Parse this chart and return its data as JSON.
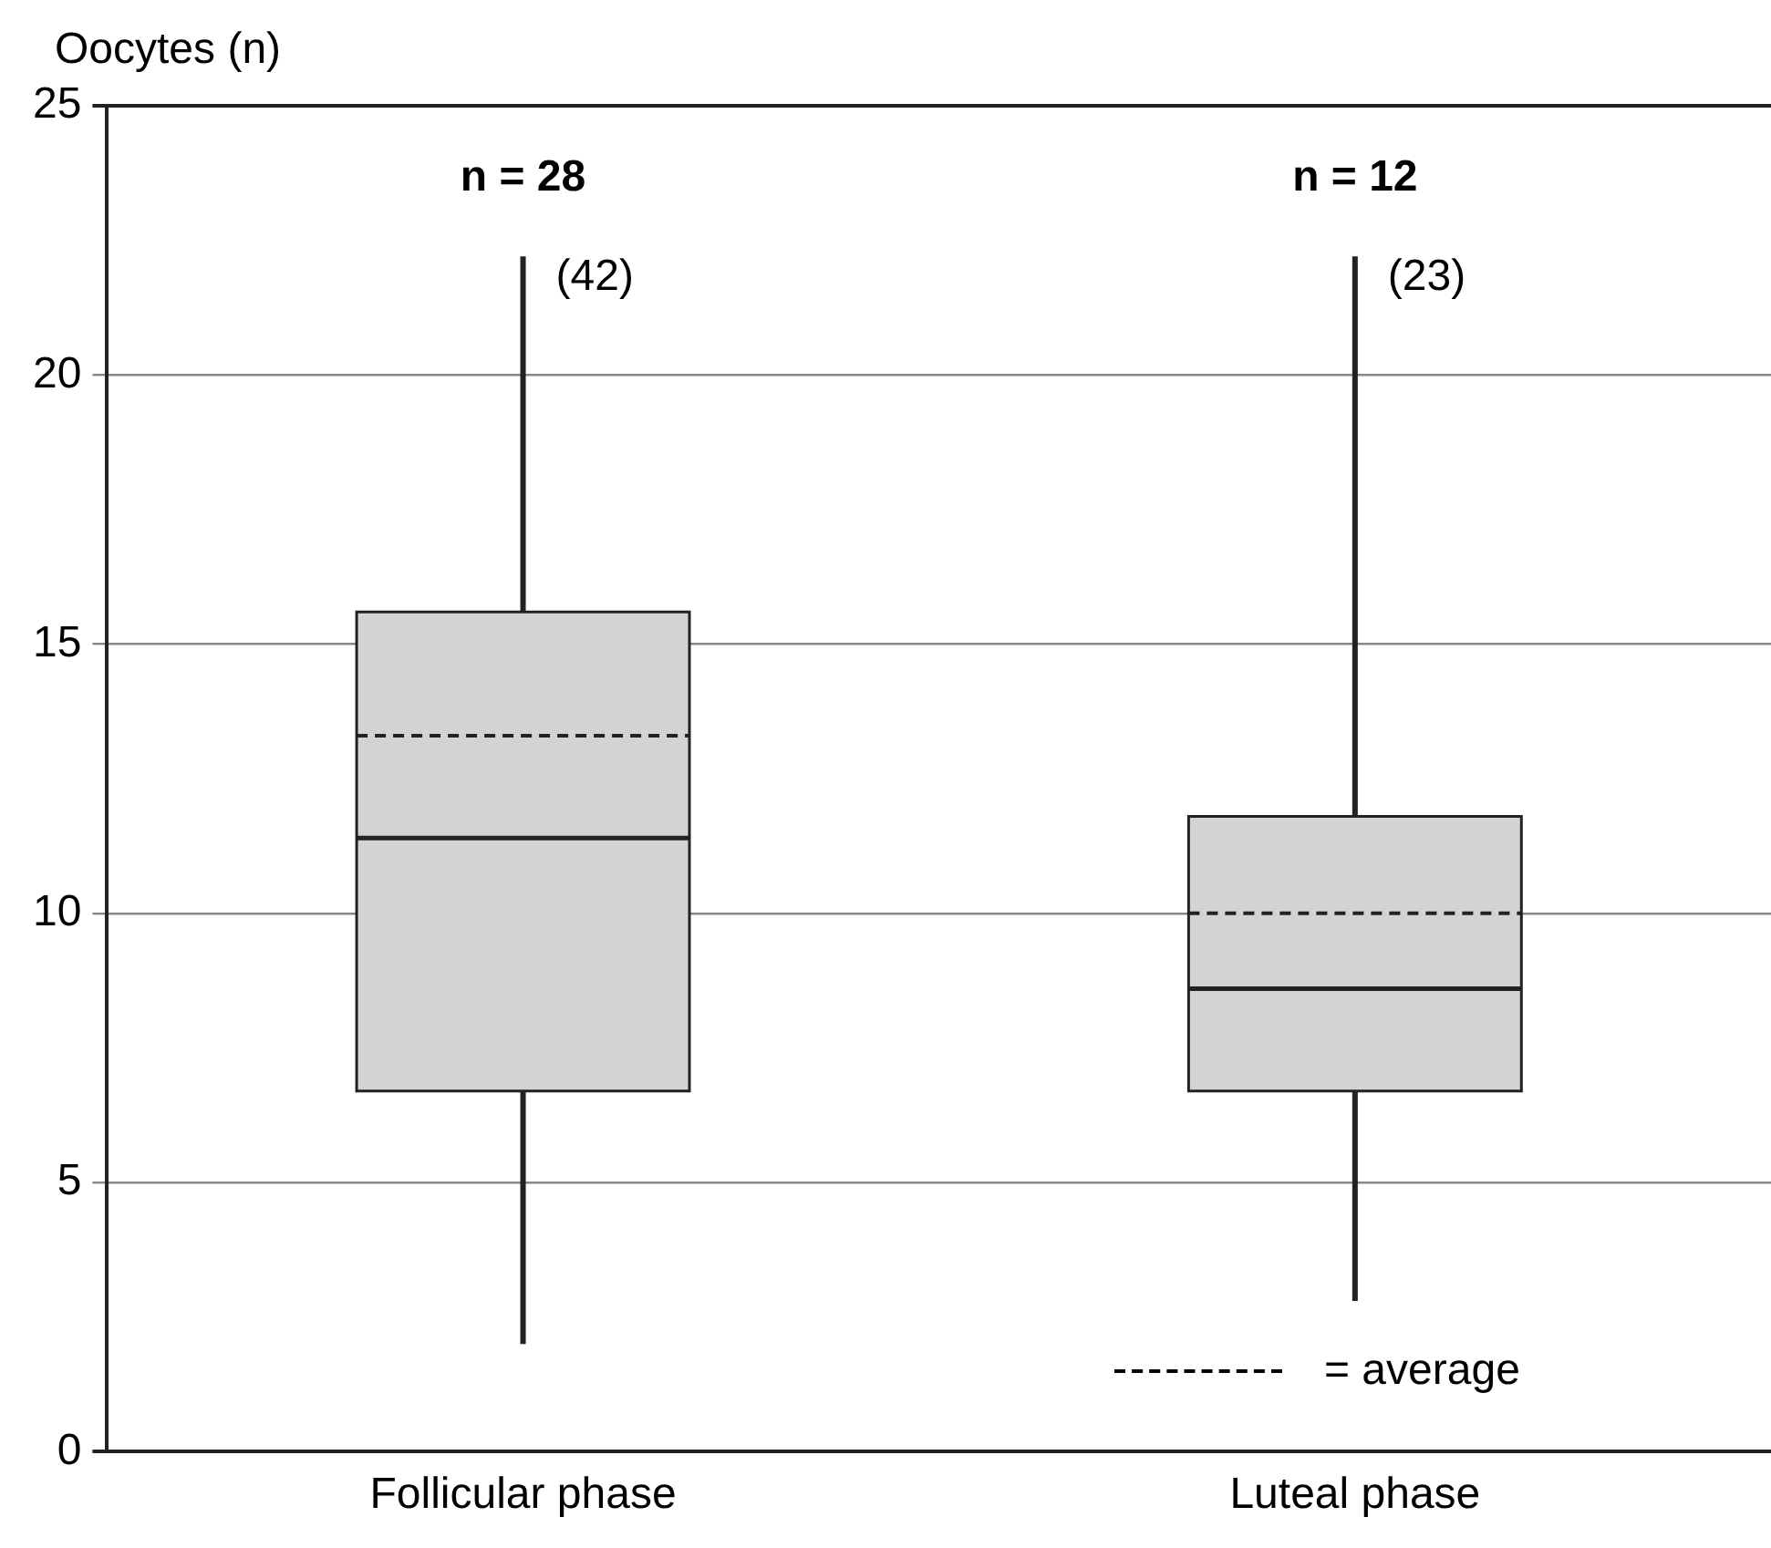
{
  "chart_data": {
    "type": "box",
    "ylabel": "Oocytes (n)",
    "categories": [
      "Follicular phase",
      "Luteal phase"
    ],
    "color": "#d3d3d3",
    "boxes": [
      {
        "low": 2,
        "q1": 6.7,
        "median": 11.4,
        "q3": 15.6,
        "high": 22.2,
        "mean": 13.3
      },
      {
        "low": 2.8,
        "q1": 6.7,
        "median": 8.6,
        "q3": 11.8,
        "high": 22.2,
        "mean": 10
      }
    ],
    "ylim": [
      0,
      25
    ],
    "yticks": [
      0,
      5,
      10,
      15,
      20,
      25
    ],
    "grid": "y",
    "annotations": [
      "n = 28",
      "n = 12",
      {
        "text": "(42)",
        "x": "Follicular phase",
        "y": 21.8
      },
      {
        "text": "(23)",
        "x": "Luteal phase",
        "y": 21.8
      },
      "= average"
    ]
  }
}
